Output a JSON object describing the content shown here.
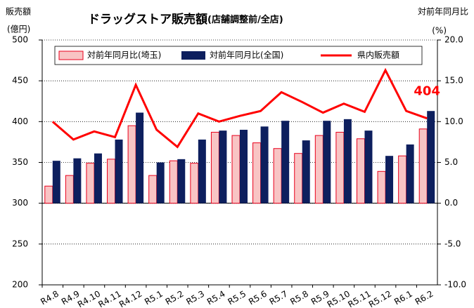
{
  "chart_data": {
    "type": "bar-line",
    "title": "ドラッグストア販売額",
    "subtitle": "(店舗調整前/全店)",
    "y_label": "販売額",
    "y_unit": "(億円)",
    "y2_label": "対前年同月比",
    "y2_unit": "(%)",
    "categories": [
      "R4.8",
      "R4.9",
      "R4.10",
      "R4.11",
      "R4.12",
      "R5.1",
      "R5.2",
      "R5.3",
      "R5.4",
      "R5.5",
      "R5.6",
      "R5.7",
      "R5.8",
      "R5.9",
      "R5.10",
      "R5.11",
      "R5.12",
      "R6.1",
      "R6.2"
    ],
    "series": [
      {
        "name": "対前年同月比(埼玉)",
        "type": "bar",
        "axis": "y2",
        "color": "#f8c4c4",
        "edge": "#e8001c",
        "values": [
          2.1,
          3.4,
          4.9,
          5.4,
          9.5,
          3.4,
          5.2,
          4.9,
          8.7,
          8.3,
          7.4,
          6.7,
          6.1,
          8.3,
          8.7,
          7.9,
          3.9,
          5.8,
          9.1
        ]
      },
      {
        "name": "対前年同月比(全国)",
        "type": "bar",
        "axis": "y2",
        "color": "#0d1f5e",
        "values": [
          5.2,
          5.5,
          6.1,
          7.8,
          11.1,
          5.0,
          5.4,
          7.8,
          8.9,
          9.0,
          9.4,
          10.1,
          7.7,
          10.1,
          10.3,
          8.9,
          5.8,
          7.2,
          11.3
        ]
      },
      {
        "name": "県内販売額",
        "type": "line",
        "axis": "y",
        "color": "#ff0000",
        "values": [
          400,
          378,
          388,
          381,
          445,
          390,
          369,
          410,
          400,
          407,
          413,
          436,
          424,
          411,
          422,
          412,
          463,
          413,
          404
        ]
      }
    ],
    "ylim": [
      200,
      500
    ],
    "yticks": [
      200,
      250,
      300,
      350,
      400,
      450,
      500
    ],
    "y2lim": [
      -10,
      20
    ],
    "y2ticks": [
      {
        "value": -10,
        "label": "-10.0"
      },
      {
        "value": -5,
        "label": "-5.0"
      },
      {
        "value": 0,
        "label": "0.0"
      },
      {
        "value": 5,
        "label": "5.0"
      },
      {
        "value": 10,
        "label": "10.0"
      },
      {
        "value": 15,
        "label": "15.0"
      },
      {
        "value": 20,
        "label": "20.0"
      }
    ],
    "grid": true
  }
}
